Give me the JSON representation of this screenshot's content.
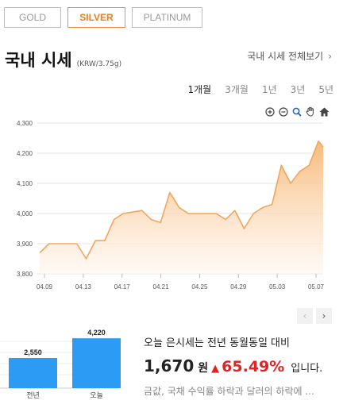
{
  "tabs": [
    {
      "label": "GOLD",
      "active": false
    },
    {
      "label": "SILVER",
      "active": true
    },
    {
      "label": "PLATINUM",
      "active": false
    }
  ],
  "header": {
    "title": "국내 시세",
    "unit": "(KRW/3.75g)",
    "view_all": "국내 시세 전체보기"
  },
  "periods": [
    {
      "label": "1개월",
      "active": true
    },
    {
      "label": "3개월",
      "active": false
    },
    {
      "label": "1년",
      "active": false
    },
    {
      "label": "3년",
      "active": false
    },
    {
      "label": "5년",
      "active": false
    }
  ],
  "zoom_tools": [
    "zoom-in-icon",
    "zoom-out-icon",
    "magnify-icon",
    "pan-hand-icon",
    "home-icon"
  ],
  "colors": {
    "accent": "#f07d18",
    "line": "#f2a55c",
    "fill_top": "#f7b774",
    "up": "#e02424",
    "bar": "#2b9bf4"
  },
  "chart_data": [
    {
      "type": "area",
      "title": "",
      "xlabel": "",
      "ylabel": "",
      "ylim": [
        3800,
        4300
      ],
      "yticks": [
        "3,800",
        "3,900",
        "4,000",
        "4,100",
        "4,200",
        "4,300"
      ],
      "xticks": [
        "04.09",
        "04.13",
        "04.17",
        "04.21",
        "04.25",
        "04.29",
        "05.03",
        "05.07"
      ],
      "grid": true,
      "series": [
        {
          "values": [
            [
              0.0,
              3870
            ],
            [
              1.0,
              3900
            ],
            [
              2.0,
              3900
            ],
            [
              3.0,
              3900
            ],
            [
              4.0,
              3900
            ],
            [
              5.0,
              3850
            ],
            [
              6.0,
              3910
            ],
            [
              7.0,
              3910
            ],
            [
              8.0,
              3980
            ],
            [
              9.0,
              4000
            ],
            [
              10.0,
              4005
            ],
            [
              11.0,
              4010
            ],
            [
              12.0,
              3980
            ],
            [
              13.0,
              3970
            ],
            [
              14.0,
              4070
            ],
            [
              15.0,
              4020
            ],
            [
              16.0,
              4000
            ],
            [
              17.0,
              4000
            ],
            [
              18.0,
              4000
            ],
            [
              19.0,
              4000
            ],
            [
              20.0,
              3980
            ],
            [
              21.0,
              4010
            ],
            [
              22.0,
              3950
            ],
            [
              23.0,
              4000
            ],
            [
              24.0,
              4020
            ],
            [
              25.0,
              4030
            ],
            [
              26.0,
              4160
            ],
            [
              27.0,
              4100
            ],
            [
              28.0,
              4140
            ],
            [
              29.0,
              4160
            ],
            [
              30.0,
              4240
            ],
            [
              30.5,
              4220
            ]
          ]
        }
      ]
    },
    {
      "type": "bar",
      "categories": [
        "전년",
        "오늘"
      ],
      "values": [
        2550,
        4220
      ],
      "value_labels": [
        "2,550",
        "4,220"
      ],
      "ylim": [
        0,
        4500
      ]
    }
  ],
  "summary": {
    "line1": "오늘 은시세는 전년 동월동일 대비",
    "amount": "1,670",
    "currency": "원",
    "arrow": "▲",
    "percent": "65.49%",
    "tail": "입니다.",
    "line3": "금값, 국채 수익률 하락과 달러의 하락에 ..."
  }
}
